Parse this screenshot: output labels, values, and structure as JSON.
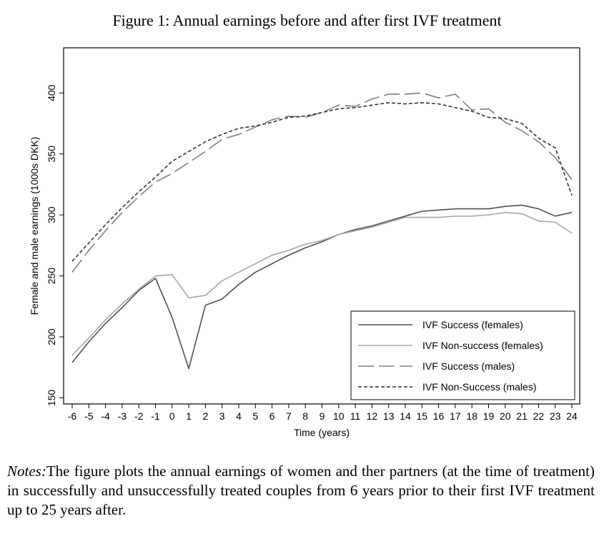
{
  "figure": {
    "title": "Figure 1: Annual earnings before and after first IVF treatment"
  },
  "notes": {
    "label": "Notes:",
    "text": "The figure plots the annual earnings of women and ther partners (at the time of treatment) in successfully and unsuccessfully treated couples from 6 years prior to their first IVF treatment up to 25 years after."
  },
  "chart_data": {
    "type": "line",
    "title": "Figure 1: Annual earnings before and after first IVF treatment",
    "xlabel": "Time (years)",
    "ylabel": "Female and male earnings (1000s DKK)",
    "xlim": [
      -6,
      24
    ],
    "ylim": [
      145,
      437
    ],
    "x": [
      -6,
      -5,
      -4,
      -3,
      -2,
      -1,
      0,
      1,
      2,
      3,
      4,
      5,
      6,
      7,
      8,
      9,
      10,
      11,
      12,
      13,
      14,
      15,
      16,
      17,
      18,
      19,
      20,
      21,
      22,
      23,
      24
    ],
    "xticks": [
      "-6",
      "-5",
      "-4",
      "-3",
      "-2",
      "-1",
      "0",
      "1",
      "2",
      "3",
      "4",
      "5",
      "6",
      "7",
      "8",
      "9",
      "10",
      "11",
      "12",
      "13",
      "14",
      "15",
      "16",
      "17",
      "18",
      "19",
      "20",
      "21",
      "22",
      "23",
      "24"
    ],
    "yticks": [
      150,
      200,
      250,
      300,
      350,
      400
    ],
    "ytick_labels": [
      "150",
      "200",
      "250",
      "300",
      "350",
      "400"
    ],
    "grid": false,
    "legend_position": "bottom-right",
    "series": [
      {
        "name": "IVF Success (females)",
        "style": "solid",
        "color": "#505050",
        "values": [
          179,
          196,
          211,
          224,
          238,
          248,
          216,
          174,
          226,
          231,
          243,
          253,
          260,
          267,
          273,
          278,
          284,
          288,
          291,
          295,
          299,
          303,
          304,
          305,
          305,
          305,
          307,
          308,
          305,
          299,
          302
        ]
      },
      {
        "name": "IVF Non-success (females)",
        "style": "solid",
        "color": "#a6a6a6",
        "values": [
          185,
          199,
          214,
          227,
          239,
          250,
          251,
          232,
          234,
          246,
          253,
          260,
          267,
          271,
          276,
          279,
          284,
          287,
          290,
          294,
          298,
          298,
          298,
          299,
          299,
          300,
          302,
          301,
          295,
          294,
          285
        ]
      },
      {
        "name": "IVF Success (males)",
        "style": "longdash",
        "color": "#7e7e7e",
        "values": [
          253,
          271,
          287,
          302,
          315,
          327,
          334,
          343,
          352,
          362,
          366,
          372,
          378,
          381,
          380,
          384,
          390,
          389,
          395,
          399,
          399,
          400,
          396,
          399,
          386,
          387,
          376,
          369,
          360,
          347,
          329
        ]
      },
      {
        "name": "IVF Non-Success (males)",
        "style": "shortdash",
        "color": "#333333",
        "values": [
          262,
          277,
          292,
          306,
          319,
          331,
          344,
          352,
          360,
          366,
          371,
          373,
          376,
          380,
          381,
          384,
          387,
          388,
          390,
          392,
          391,
          392,
          391,
          388,
          385,
          380,
          379,
          375,
          363,
          355,
          316
        ]
      }
    ]
  }
}
